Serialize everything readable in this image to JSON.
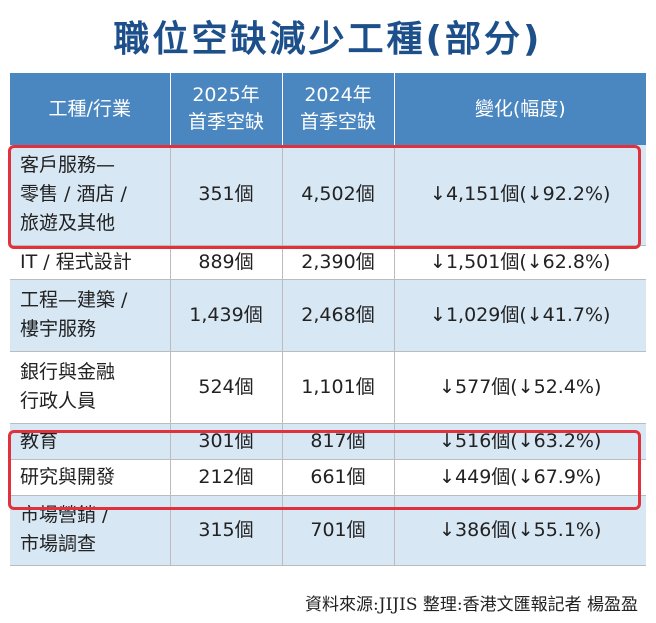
{
  "title": "職位空缺減少工種(部分)",
  "headers": [
    "工種/行業",
    "2025年\n首季空缺",
    "2024年\n首季空缺",
    "變化(幅度)"
  ],
  "rows": [
    {
      "name": "客戶服務—\n零售 / 酒店 /\n旅遊及其他",
      "v2025": "351個",
      "v2024": "4,502個",
      "change": "↓4,151個(↓92.2%)"
    },
    {
      "name": "IT / 程式設計",
      "v2025": "889個",
      "v2024": "2,390個",
      "change": "↓1,501個(↓62.8%)"
    },
    {
      "name": "工程—建築 /\n樓宇服務",
      "v2025": "1,439個",
      "v2024": "2,468個",
      "change": "↓1,029個(↓41.7%)"
    },
    {
      "name": "銀行與金融\n行政人員",
      "v2025": "524個",
      "v2024": "1,101個",
      "change": "↓577個(↓52.4%)"
    },
    {
      "name": "教育",
      "v2025": "301個",
      "v2024": "817個",
      "change": "↓516個(↓63.2%)"
    },
    {
      "name": "研究與開發",
      "v2025": "212個",
      "v2024": "661個",
      "change": "↓449個(↓67.9%)"
    },
    {
      "name": "市場營銷 /\n市場調查",
      "v2025": "315個",
      "v2024": "701個",
      "change": "↓386個(↓55.1%)"
    }
  ],
  "source": "資料來源:JIJIS 整理:香港文匯報記者 楊盈盈",
  "colors": {
    "title": "#1d4f8b",
    "header_bg": "#4a86bf",
    "row_alt": "#d7e7f4",
    "highlight": "#e0313c"
  }
}
